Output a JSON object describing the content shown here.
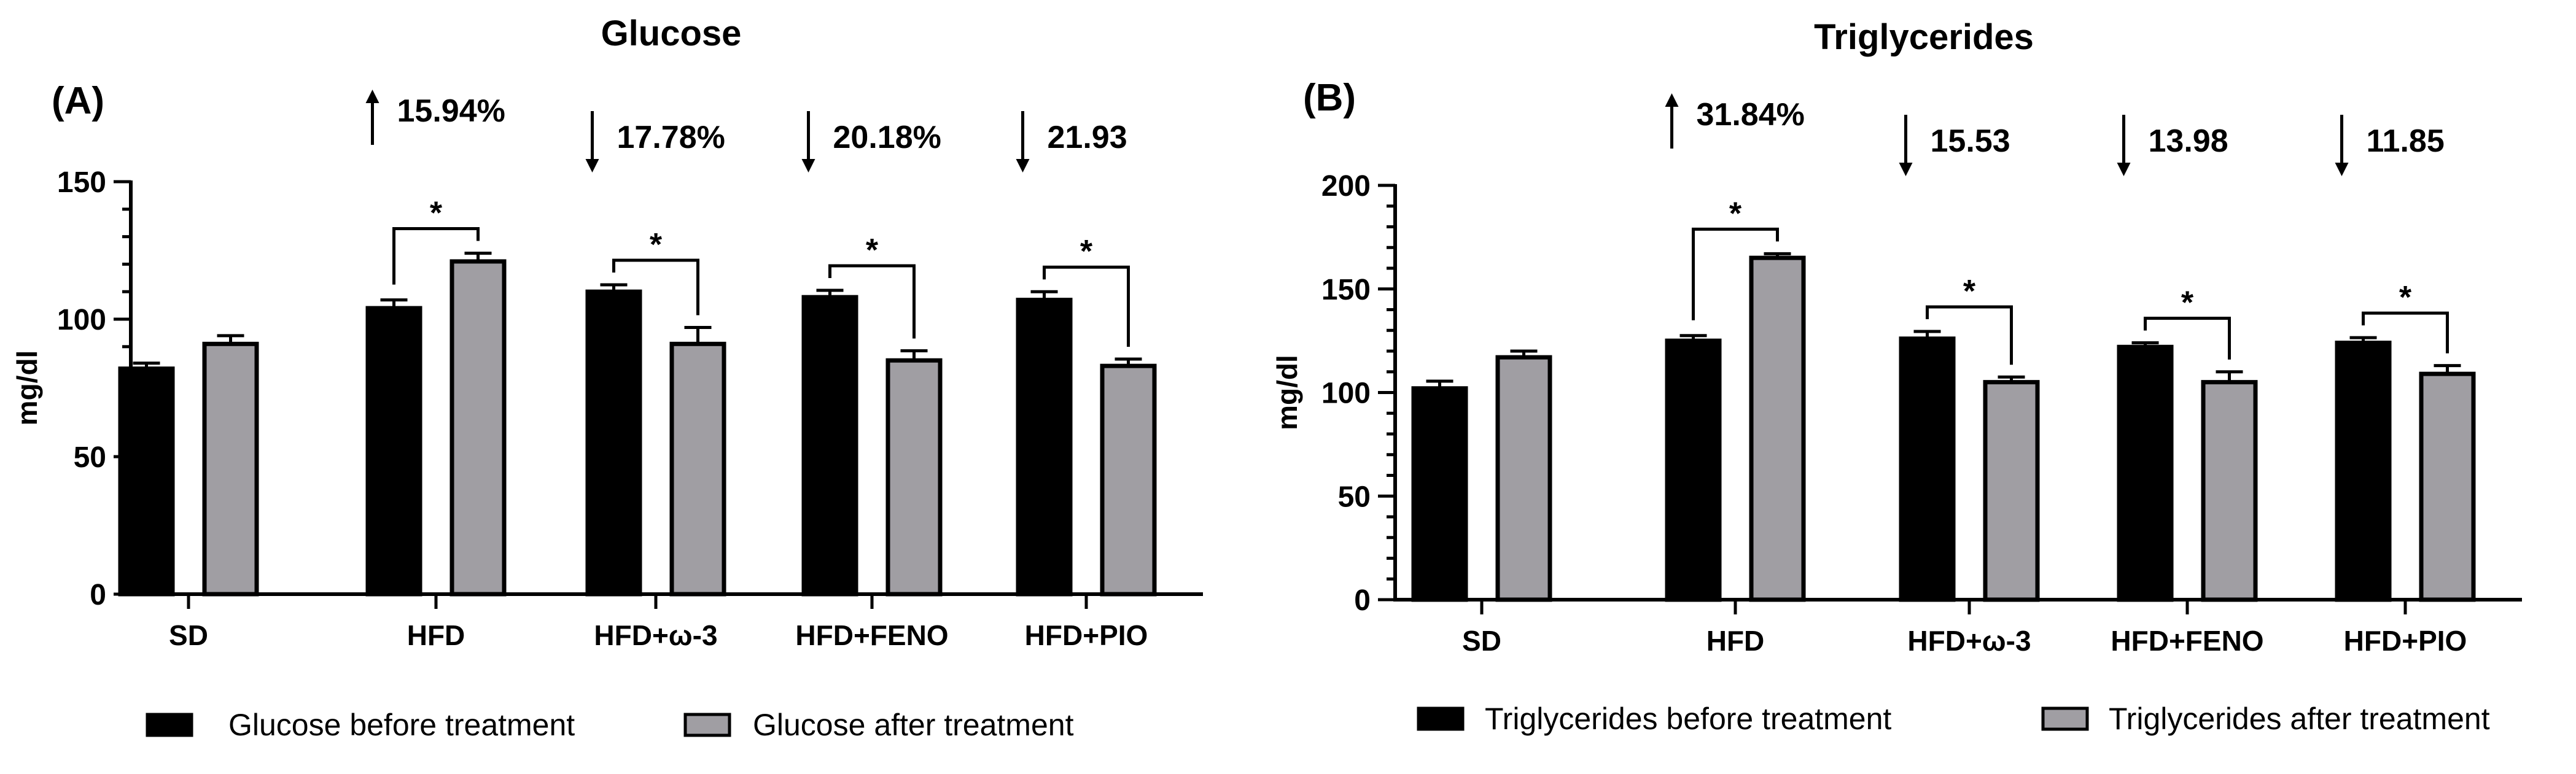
{
  "colors": {
    "before": "#000000",
    "after": "#a09ea3",
    "axis": "#000000"
  },
  "chart_data": [
    {
      "type": "bar",
      "panel": "(A)",
      "title": "Glucose",
      "ylabel": "mg/dl",
      "xlabel": "",
      "ylim": [
        0,
        150
      ],
      "yticks": [
        0,
        50,
        100,
        150
      ],
      "yticks_label": [
        "0",
        "50",
        "100",
        "150"
      ],
      "categories": [
        "SD",
        "HFD",
        "HFD+ω-3",
        "HFD+FENO",
        "HFD+PIO"
      ],
      "series": [
        {
          "name": "Glucose before treatment",
          "values": [
            82,
            104,
            110,
            108,
            107
          ],
          "errors": [
            2,
            3,
            2.5,
            2.5,
            3
          ]
        },
        {
          "name": "Glucose after treatment",
          "values": [
            91,
            121,
            91,
            85,
            83
          ],
          "errors": [
            3,
            3,
            6,
            3.5,
            2.5
          ]
        }
      ],
      "annotations": [
        {
          "category": "HFD",
          "direction": "up",
          "text": "15.94%",
          "significance": "*"
        },
        {
          "category": "HFD+ω-3",
          "direction": "down",
          "text": "17.78%",
          "significance": "*"
        },
        {
          "category": "HFD+FENO",
          "direction": "down",
          "text": "20.18%",
          "significance": "*"
        },
        {
          "category": "HFD+PIO",
          "direction": "down",
          "text": "21.93",
          "significance": "*"
        }
      ]
    },
    {
      "type": "bar",
      "panel": "(B)",
      "title": "Triglycerides",
      "ylabel": "mg/dl",
      "xlabel": "",
      "ylim": [
        0,
        200
      ],
      "yticks": [
        0,
        50,
        100,
        150,
        200
      ],
      "yticks_label": [
        "0",
        "50",
        "100",
        "150",
        "200"
      ],
      "categories": [
        "SD",
        "HFD",
        "HFD+ω-3",
        "HFD+FENO",
        "HFD+PIO"
      ],
      "series": [
        {
          "name": "Triglycerides before treatment",
          "values": [
            102,
            125,
            126,
            122,
            124
          ],
          "errors": [
            3.5,
            2.5,
            3.5,
            2,
            2.5
          ]
        },
        {
          "name": "Triglycerides after treatment",
          "values": [
            117,
            165,
            105,
            105,
            109
          ],
          "errors": [
            3,
            2,
            2.5,
            5,
            4
          ]
        }
      ],
      "annotations": [
        {
          "category": "HFD",
          "direction": "up",
          "text": "31.84%",
          "significance": "*"
        },
        {
          "category": "HFD+ω-3",
          "direction": "down",
          "text": "15.53",
          "significance": "*"
        },
        {
          "category": "HFD+FENO",
          "direction": "down",
          "text": "13.98",
          "significance": "*"
        },
        {
          "category": "HFD+PIO",
          "direction": "down",
          "text": "11.85",
          "significance": "*"
        }
      ]
    }
  ]
}
